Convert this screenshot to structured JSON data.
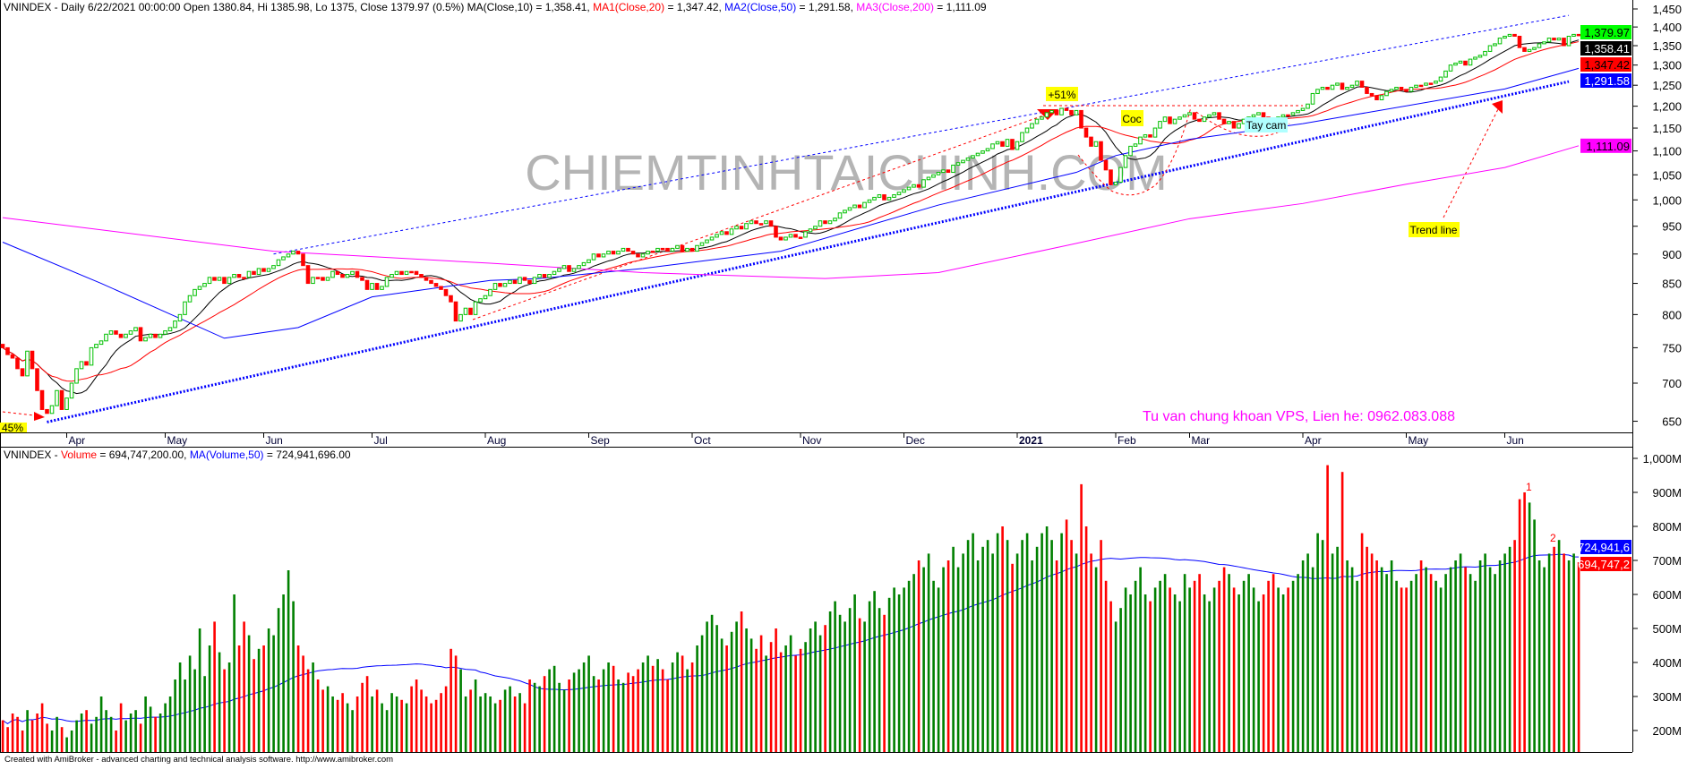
{
  "header": {
    "price_info": "VNINDEX - Daily 6/22/2021 00:00:00 Open 1380.84, Hi 1385.98, Lo 1375, Close 1379.97 (0.5%) MA(Close,10) = 1,358.41, ",
    "ma1_label": "MA1(Close,20)",
    "ma1_value": " = 1,347.42, ",
    "ma2_label": "MA2(Close,50)",
    "ma2_value": " = 1,291.58, ",
    "ma3_label": "MA3(Close,200)",
    "ma3_value": " = 1,111.09",
    "volume_prefix": "VNINDEX - ",
    "volume_label": "Volume",
    "volume_value": " = 694,747,200.00, ",
    "volume_ma_label": "MA(Volume,50)",
    "volume_ma_value": " = 724,941,696.00"
  },
  "footer": "Created with AmiBroker - advanced charting and technical analysis software. http://www.amibroker.com",
  "watermark": "CHIEMTINHTAICHINH.COM",
  "contact_text": "Tu van chung khoan VPS, Lien he: 0962.083.088",
  "chart_data": {
    "type": "candlestick",
    "symbol": "VNINDEX",
    "interval": "Daily",
    "price_scale": "log",
    "price_ticks": [
      1450,
      1400,
      1350,
      1300,
      1250,
      1200,
      1150,
      1100,
      1050,
      1000,
      950,
      900,
      850,
      800,
      750,
      700,
      650
    ],
    "volume_ticks": [
      "1,000M",
      "900M",
      "800M",
      "700M",
      "600M",
      "500M",
      "400M",
      "300M",
      "200M"
    ],
    "volume_tick_values": [
      1000,
      900,
      800,
      700,
      600,
      500,
      400,
      300,
      200
    ],
    "x_ticks": [
      {
        "label": "Apr",
        "bar": 13
      },
      {
        "label": "May",
        "bar": 33
      },
      {
        "label": "Jun",
        "bar": 53
      },
      {
        "label": "Jul",
        "bar": 75
      },
      {
        "label": "Aug",
        "bar": 98
      },
      {
        "label": "Sep",
        "bar": 119
      },
      {
        "label": "Oct",
        "bar": 140
      },
      {
        "label": "Nov",
        "bar": 162
      },
      {
        "label": "Dec",
        "bar": 183
      },
      {
        "label": "2021",
        "bar": 206,
        "bold": true
      },
      {
        "label": "Feb",
        "bar": 226
      },
      {
        "label": "Mar",
        "bar": 241
      },
      {
        "label": "Apr",
        "bar": 264
      },
      {
        "label": "May",
        "bar": 285
      },
      {
        "label": "Jun",
        "bar": 305
      }
    ],
    "close": [
      750,
      740,
      735,
      720,
      710,
      745,
      720,
      690,
      665,
      660,
      670,
      690,
      665,
      680,
      700,
      720,
      730,
      725,
      750,
      755,
      760,
      770,
      775,
      770,
      765,
      770,
      775,
      780,
      760,
      765,
      770,
      765,
      770,
      775,
      780,
      790,
      800,
      820,
      830,
      840,
      845,
      850,
      860,
      855,
      860,
      850,
      860,
      865,
      860,
      860,
      870,
      865,
      875,
      870,
      875,
      880,
      890,
      895,
      900,
      905,
      900,
      880,
      850,
      860,
      860,
      855,
      860,
      870,
      865,
      860,
      865,
      870,
      860,
      855,
      840,
      850,
      840,
      845,
      860,
      865,
      870,
      865,
      870,
      870,
      865,
      860,
      855,
      850,
      845,
      840,
      830,
      820,
      790,
      800,
      810,
      800,
      820,
      825,
      830,
      840,
      850,
      845,
      850,
      855,
      850,
      860,
      855,
      850,
      860,
      865,
      860,
      865,
      870,
      875,
      880,
      870,
      875,
      880,
      885,
      890,
      900,
      895,
      900,
      905,
      900,
      905,
      910,
      905,
      900,
      895,
      900,
      905,
      905,
      910,
      910,
      905,
      910,
      915,
      905,
      910,
      905,
      915,
      920,
      925,
      930,
      935,
      940,
      935,
      945,
      950,
      945,
      955,
      960,
      955,
      955,
      960,
      950,
      930,
      925,
      930,
      935,
      930,
      930,
      940,
      945,
      950,
      960,
      955,
      960,
      965,
      975,
      980,
      985,
      990,
      985,
      995,
      1000,
      1005,
      1010,
      1000,
      1005,
      1010,
      1015,
      1020,
      1025,
      1030,
      1025,
      1040,
      1045,
      1050,
      1055,
      1060,
      1055,
      1070,
      1075,
      1080,
      1085,
      1090,
      1095,
      1100,
      1105,
      1115,
      1120,
      1110,
      1125,
      1103,
      1120,
      1140,
      1150,
      1160,
      1170,
      1175,
      1185,
      1190,
      1180,
      1195,
      1190,
      1180,
      1190,
      1150,
      1130,
      1110,
      1120,
      1080,
      1060,
      1030,
      1035,
      1065,
      1090,
      1110,
      1115,
      1130,
      1135,
      1130,
      1150,
      1165,
      1175,
      1160,
      1170,
      1175,
      1180,
      1185,
      1170,
      1165,
      1175,
      1180,
      1185,
      1170,
      1160,
      1165,
      1150,
      1160,
      1170,
      1175,
      1180,
      1185,
      1175,
      1170,
      1165,
      1175,
      1180,
      1180,
      1185,
      1190,
      1195,
      1205,
      1230,
      1240,
      1245,
      1240,
      1250,
      1255,
      1240,
      1245,
      1250,
      1260,
      1245,
      1230,
      1225,
      1215,
      1225,
      1235,
      1240,
      1245,
      1240,
      1235,
      1245,
      1250,
      1250,
      1255,
      1255,
      1260,
      1270,
      1285,
      1300,
      1305,
      1310,
      1300,
      1315,
      1320,
      1325,
      1335,
      1350,
      1355,
      1370,
      1375,
      1380,
      1375,
      1345,
      1335,
      1340,
      1345,
      1355,
      1360,
      1370,
      1365,
      1370,
      1350,
      1375,
      1380,
      1379.97
    ],
    "volume_millions": [
      230,
      210,
      250,
      240,
      200,
      260,
      230,
      250,
      280,
      220,
      200,
      240,
      210,
      180,
      200,
      230,
      250,
      260,
      220,
      240,
      300,
      260,
      240,
      200,
      280,
      230,
      250,
      260,
      220,
      300,
      270,
      240,
      250,
      280,
      300,
      350,
      400,
      350,
      420,
      380,
      500,
      360,
      450,
      520,
      430,
      380,
      400,
      600,
      450,
      520,
      480,
      410,
      440,
      450,
      500,
      480,
      560,
      600,
      671,
      580,
      450,
      420,
      380,
      400,
      350,
      320,
      330,
      300,
      290,
      310,
      280,
      260,
      300,
      340,
      360,
      300,
      320,
      280,
      260,
      310,
      300,
      290,
      280,
      330,
      350,
      320,
      300,
      280,
      290,
      310,
      330,
      440,
      420,
      380,
      300,
      320,
      350,
      300,
      310,
      300,
      280,
      290,
      320,
      330,
      300,
      310,
      280,
      350,
      340,
      330,
      360,
      380,
      390,
      340,
      320,
      350,
      370,
      380,
      400,
      420,
      360,
      350,
      380,
      400,
      390,
      350,
      340,
      370,
      360,
      380,
      400,
      420,
      390,
      410,
      380,
      350,
      400,
      430,
      420,
      380,
      400,
      450,
      480,
      520,
      540,
      510,
      470,
      450,
      490,
      520,
      550,
      500,
      470,
      440,
      480,
      420,
      460,
      500,
      430,
      450,
      480,
      420,
      440,
      460,
      500,
      520,
      480,
      510,
      550,
      580,
      540,
      520,
      560,
      600,
      530,
      520,
      580,
      610,
      560,
      540,
      590,
      620,
      600,
      620,
      640,
      660,
      700,
      680,
      720,
      640,
      620,
      680,
      700,
      740,
      680,
      720,
      760,
      780,
      700,
      740,
      760,
      720,
      780,
      800,
      760,
      690,
      720,
      760,
      780,
      700,
      740,
      780,
      800,
      760,
      700,
      780,
      820,
      760,
      720,
      924,
      800,
      720,
      680,
      760,
      640,
      580,
      520,
      560,
      620,
      600,
      640,
      680,
      600,
      580,
      620,
      640,
      660,
      620,
      600,
      580,
      660,
      620,
      640,
      660,
      600,
      580,
      620,
      640,
      680,
      660,
      620,
      600,
      640,
      660,
      620,
      580,
      600,
      640,
      660,
      620,
      600,
      620,
      640,
      660,
      700,
      720,
      680,
      780,
      760,
      980,
      720,
      740,
      960,
      700,
      680,
      640,
      780,
      740,
      720,
      700,
      680,
      660,
      700,
      640,
      620,
      620,
      640,
      660,
      700,
      680,
      660,
      640,
      620,
      660,
      680,
      700,
      720,
      680,
      660,
      640,
      700,
      720,
      680,
      660,
      700,
      720,
      740,
      760,
      880,
      900,
      870,
      820,
      700,
      680,
      720,
      740,
      760,
      720,
      700,
      720,
      694.7
    ],
    "ma50_points": [
      [
        0,
        921
      ],
      [
        20,
        850
      ],
      [
        45,
        764
      ],
      [
        60,
        780
      ],
      [
        75,
        828
      ],
      [
        99,
        855
      ],
      [
        109,
        858
      ],
      [
        130,
        875
      ],
      [
        158,
        905
      ],
      [
        190,
        990
      ],
      [
        218,
        1055
      ],
      [
        226,
        1090
      ],
      [
        241,
        1125
      ],
      [
        264,
        1160
      ],
      [
        305,
        1241
      ],
      [
        320,
        1291.58
      ]
    ],
    "ma200_points": [
      [
        0,
        966
      ],
      [
        55,
        905
      ],
      [
        99,
        884
      ],
      [
        130,
        868
      ],
      [
        167,
        858
      ],
      [
        190,
        868
      ],
      [
        216,
        915
      ],
      [
        241,
        964
      ],
      [
        264,
        993
      ],
      [
        285,
        1031
      ],
      [
        305,
        1065
      ],
      [
        320,
        1111.09
      ]
    ],
    "last_values": {
      "close": {
        "label": "1,379.97",
        "color": "#00ff00"
      },
      "ma10": {
        "label": "1,358.41",
        "color": "#000000"
      },
      "ma20": {
        "label": "1,347.42",
        "color": "#ff0000"
      },
      "ma50": {
        "label": "1,291.58",
        "color": "#0000ff"
      },
      "ma200": {
        "label": "1,111.09",
        "color": "#ff00ff"
      },
      "volume_ma": {
        "label": "724,941,6",
        "color": "#0000ff"
      },
      "volume": {
        "label": "694,747,2",
        "color": "#ff0000"
      }
    },
    "trendlines": {
      "upper_channel": [
        [
          55,
          900
        ],
        [
          318,
          1432
        ]
      ],
      "lower_trend": [
        [
          9,
          649
        ],
        [
          318,
          1259
        ]
      ]
    },
    "annotations": {
      "gain": "+51%",
      "drop": "45%",
      "cup": "Coc",
      "handle": "Tay cam",
      "trend": "Trend line",
      "vol1": "1",
      "vol2": "2"
    },
    "colors": {
      "up": "#00c000",
      "down": "#ff0000",
      "ma10": "#000000",
      "ma20": "#ff0000",
      "ma50": "#0000ff",
      "ma200": "#ff00ff",
      "volume_up": "#008000",
      "volume_down": "#ff0000"
    }
  }
}
